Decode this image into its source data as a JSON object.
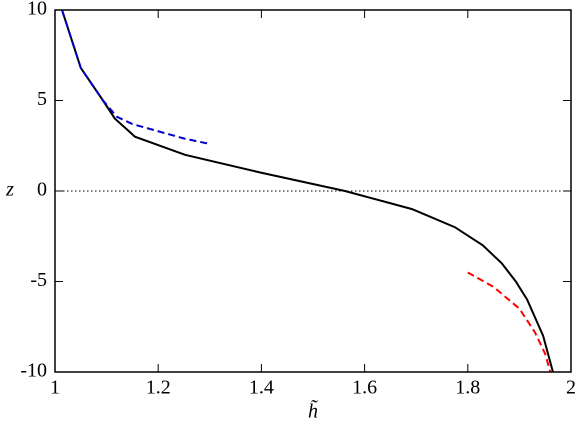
{
  "chart_data": {
    "type": "line",
    "x_label": "h̃",
    "y_label": "z",
    "xlim": [
      1,
      2
    ],
    "ylim": [
      -10,
      10
    ],
    "xticks": [
      1,
      1.2,
      1.4,
      1.6,
      1.8,
      2
    ],
    "yticks": [
      10,
      5,
      0,
      -5,
      -10
    ],
    "hline": 0,
    "series": [
      {
        "color": "#000000",
        "dash": "solid",
        "x": [
          1.0136,
          1.05,
          1.093,
          1.116,
          1.155,
          1.252,
          1.401,
          1.562,
          1.692,
          1.775,
          1.829,
          1.866,
          1.893,
          1.915,
          1.946,
          1.965
        ],
        "values": [
          10,
          6.8,
          5,
          4,
          3,
          2,
          1,
          0,
          -1,
          -2,
          -3,
          -4,
          -5,
          -6,
          -8,
          -10
        ]
      },
      {
        "color": "#0000cc",
        "dash": "dashed",
        "x": [
          1.0136,
          1.05,
          1.093,
          1.12,
          1.15,
          1.2,
          1.25,
          1.3
        ],
        "values": [
          10,
          6.8,
          5,
          4.1,
          3.7,
          3.3,
          2.9,
          2.6
        ]
      },
      {
        "color": "#ff0000",
        "dash": "dashed",
        "x": [
          1.8,
          1.85,
          1.9,
          1.93,
          1.95,
          1.96
        ],
        "values": [
          -4.5,
          -5.3,
          -6.5,
          -7.8,
          -9,
          -10
        ]
      }
    ]
  }
}
